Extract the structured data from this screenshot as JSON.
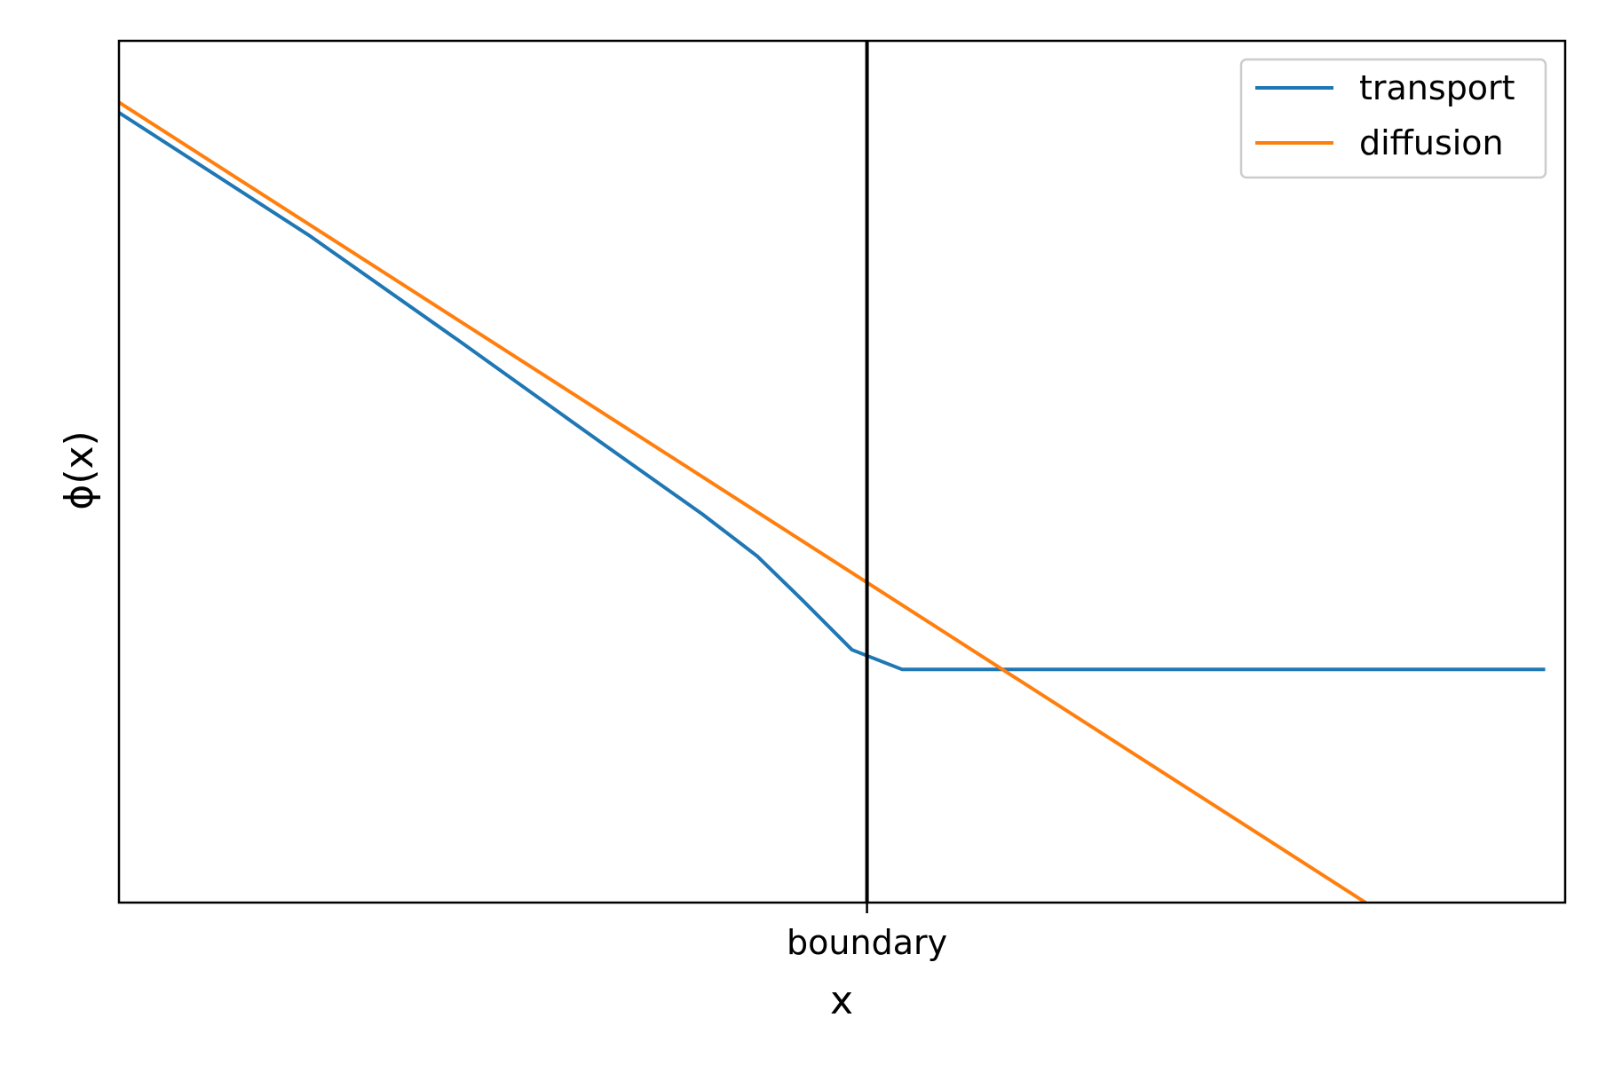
{
  "chart_data": {
    "type": "line",
    "title": "",
    "xlabel": "x",
    "ylabel": "ϕ(x)",
    "xlim": [
      -1.5,
      1.4
    ],
    "ylim": [
      0,
      1.5
    ],
    "grid": false,
    "legend_position": "top-right",
    "x_ticks": [
      {
        "value": 0,
        "label": "boundary"
      }
    ],
    "y_ticks": [],
    "vertical_line": {
      "x": 0,
      "color": "#000000"
    },
    "series": [
      {
        "name": "transport",
        "color": "#1f77b4",
        "x": [
          -1.5,
          -1.12,
          -0.82,
          -0.54,
          -0.33,
          -0.22,
          -0.13,
          -0.03,
          0.07,
          1.36
        ],
        "y": [
          1.375,
          1.162,
          0.979,
          0.805,
          0.676,
          0.603,
          0.527,
          0.44,
          0.406,
          0.406
        ]
      },
      {
        "name": "diffusion",
        "color": "#ff7f0e",
        "x": [
          -1.5,
          1.0
        ],
        "y": [
          1.393,
          0
        ]
      }
    ]
  }
}
